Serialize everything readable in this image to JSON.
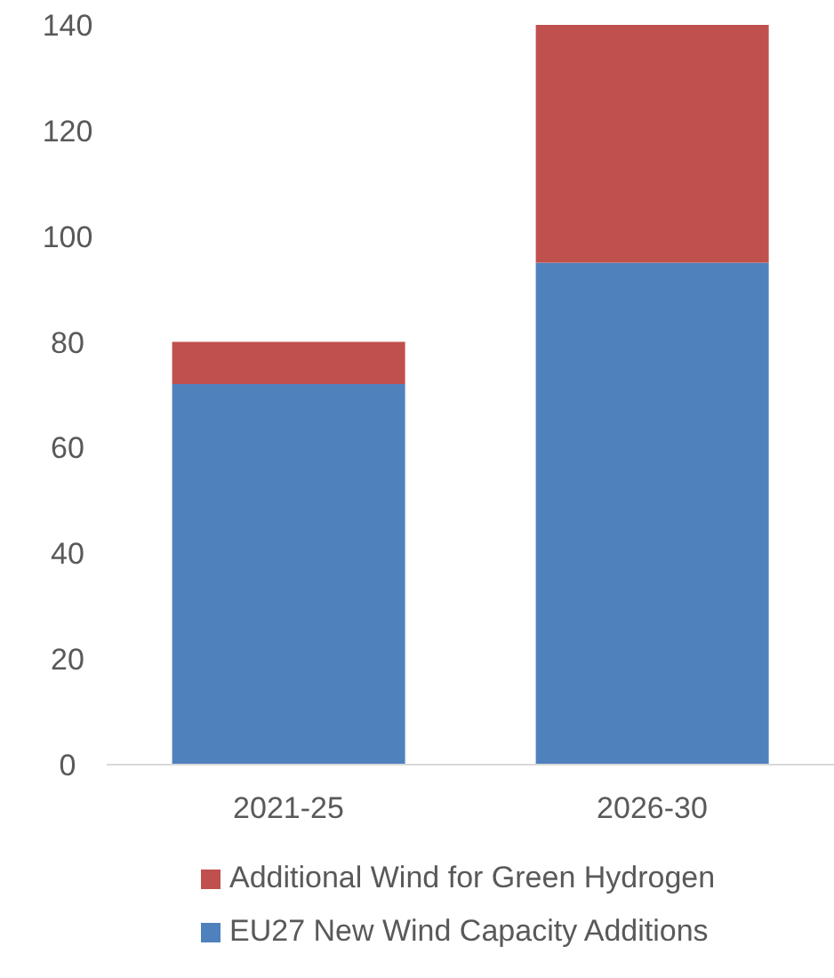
{
  "chart_data": {
    "type": "bar",
    "categories": [
      "2021-25",
      "2026-30"
    ],
    "stacked": true,
    "series": [
      {
        "name": "EU27 New Wind Capacity Additions",
        "color": "#4f81bd",
        "values": [
          72,
          95
        ]
      },
      {
        "name": "Additional Wind for Green Hydrogen",
        "color": "#c0504d",
        "values": [
          8,
          45
        ]
      }
    ],
    "ylim": [
      0,
      140
    ],
    "yticks": [
      0,
      20,
      40,
      60,
      80,
      100,
      120,
      140
    ],
    "grid": false,
    "legend": "bottom"
  }
}
